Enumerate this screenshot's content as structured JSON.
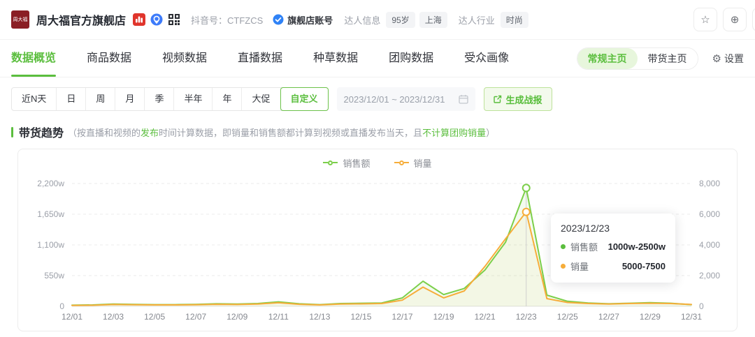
{
  "brand": {
    "logo_text": "周大福",
    "store_name": "周大福官方旗舰店",
    "douyin_id_label": "抖音号：CTFZCS",
    "account_badge": "旗舰店账号",
    "talent_info_label": "达人信息",
    "talent_info_badges": [
      "95岁",
      "上海"
    ],
    "talent_industry_label": "达人行业",
    "talent_industry_badges": [
      "时尚"
    ]
  },
  "toolbar": {
    "star_glyph": "☆",
    "add_glyph": "⊕",
    "more_glyph": "⋯"
  },
  "tabs": [
    {
      "label": "数据概览",
      "active": true
    },
    {
      "label": "商品数据",
      "active": false
    },
    {
      "label": "视频数据",
      "active": false
    },
    {
      "label": "直播数据",
      "active": false
    },
    {
      "label": "种草数据",
      "active": false
    },
    {
      "label": "团购数据",
      "active": false
    },
    {
      "label": "受众画像",
      "active": false
    }
  ],
  "page_toggle": {
    "options": [
      {
        "label": "常规主页",
        "active": true
      },
      {
        "label": "带货主页",
        "active": false
      }
    ],
    "settings_gear": "⚙",
    "settings_label": "设置"
  },
  "filters": {
    "ranges": [
      "近N天",
      "日",
      "周",
      "月",
      "季",
      "半年",
      "年",
      "大促",
      "自定义"
    ],
    "active_range": "自定义",
    "date_range": "2023/12/01 ~ 2023/12/31",
    "report_button": "生成战报"
  },
  "section": {
    "title": "带货趋势",
    "note_parts": [
      {
        "text": "（按直播和视频的",
        "green": false
      },
      {
        "text": "发布",
        "green": true
      },
      {
        "text": "时间计算数据，即销量和销售额都计算到视频或直播发布当天，且",
        "green": false
      },
      {
        "text": "不计算团购销量",
        "green": true
      },
      {
        "text": "）",
        "green": false
      }
    ]
  },
  "chart_data": {
    "type": "line",
    "title": "带货趋势",
    "x": [
      "12/01",
      "12/02",
      "12/03",
      "12/04",
      "12/05",
      "12/06",
      "12/07",
      "12/08",
      "12/09",
      "12/10",
      "12/11",
      "12/12",
      "12/13",
      "12/14",
      "12/15",
      "12/16",
      "12/17",
      "12/18",
      "12/19",
      "12/20",
      "12/21",
      "12/22",
      "12/23",
      "12/24",
      "12/25",
      "12/26",
      "12/27",
      "12/28",
      "12/29",
      "12/30",
      "12/31"
    ],
    "x_tick_step": 2,
    "series": [
      {
        "name": "销售额",
        "axis": "left",
        "color": "#7ccf4a",
        "fill_opacity": 0.09,
        "values": [
          20,
          25,
          40,
          35,
          30,
          30,
          35,
          45,
          40,
          50,
          80,
          45,
          30,
          50,
          55,
          60,
          150,
          450,
          210,
          320,
          650,
          1150,
          2120,
          200,
          90,
          60,
          45,
          55,
          65,
          55,
          30
        ]
      },
      {
        "name": "销量",
        "axis": "right",
        "color": "#f6ad3a",
        "fill_opacity": 0.05,
        "values": [
          60,
          70,
          120,
          100,
          90,
          90,
          100,
          130,
          120,
          150,
          230,
          130,
          90,
          150,
          160,
          180,
          400,
          1250,
          550,
          1000,
          2600,
          4400,
          6150,
          500,
          250,
          180,
          150,
          180,
          200,
          180,
          120
        ]
      }
    ],
    "left_axis": {
      "unit": "w",
      "max": 2200,
      "ticks": [
        "2,200w",
        "1,650w",
        "1,100w",
        "550w",
        "0"
      ]
    },
    "right_axis": {
      "max": 8000,
      "ticks": [
        "8,000",
        "6,000",
        "4,000",
        "2,000",
        "0"
      ]
    },
    "grid": "dashed-horizontal",
    "legend_position": "top-center",
    "tooltip": {
      "date": "2023/12/23",
      "highlight_index": 22,
      "rows": [
        {
          "label": "销售额",
          "value": "1000w-2500w",
          "color": "#5bbe3e"
        },
        {
          "label": "销量",
          "value": "5000-7500",
          "color": "#f6ad3a"
        }
      ]
    }
  }
}
